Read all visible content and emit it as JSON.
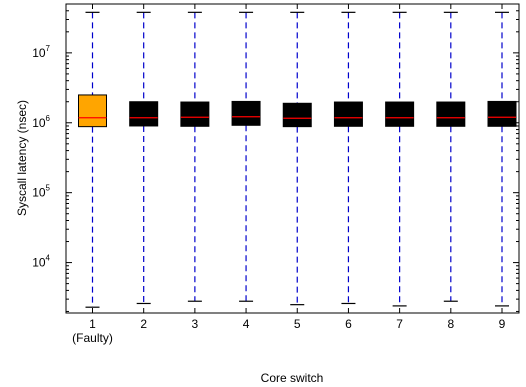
{
  "chart_data": {
    "type": "boxplot",
    "title": "",
    "xlabel": "Core switch",
    "ylabel": "Syscall latency (nsec)",
    "y_scale": "log",
    "ylim": [
      1900,
      50000000
    ],
    "grid": false,
    "legend": "none",
    "y_ticks": [
      {
        "value": 10000,
        "base": "10",
        "exp": "4"
      },
      {
        "value": 100000,
        "base": "10",
        "exp": "5"
      },
      {
        "value": 1000000,
        "base": "10",
        "exp": "6"
      },
      {
        "value": 10000000,
        "base": "10",
        "exp": "7"
      }
    ],
    "categories": [
      "1",
      "2",
      "3",
      "4",
      "5",
      "6",
      "7",
      "8",
      "9"
    ],
    "category_sublabels": [
      "(Faulty)",
      "",
      "",
      "",
      "",
      "",
      "",
      "",
      ""
    ],
    "boxes": [
      {
        "whisker_low": 2300,
        "q1": 880000,
        "median": 1180000,
        "q3": 2500000,
        "whisker_high": 38000000,
        "highlight": true
      },
      {
        "whisker_low": 2600,
        "q1": 900000,
        "median": 1180000,
        "q3": 2000000,
        "whisker_high": 38000000,
        "highlight": false
      },
      {
        "whisker_low": 2800,
        "q1": 890000,
        "median": 1200000,
        "q3": 1980000,
        "whisker_high": 38000000,
        "highlight": false
      },
      {
        "whisker_low": 2800,
        "q1": 920000,
        "median": 1220000,
        "q3": 2020000,
        "whisker_high": 38000000,
        "highlight": false
      },
      {
        "whisker_low": 2500,
        "q1": 880000,
        "median": 1160000,
        "q3": 1900000,
        "whisker_high": 38000000,
        "highlight": false
      },
      {
        "whisker_low": 2600,
        "q1": 890000,
        "median": 1180000,
        "q3": 1980000,
        "whisker_high": 38000000,
        "highlight": false
      },
      {
        "whisker_low": 2400,
        "q1": 890000,
        "median": 1180000,
        "q3": 1980000,
        "whisker_high": 38000000,
        "highlight": false
      },
      {
        "whisker_low": 2800,
        "q1": 890000,
        "median": 1180000,
        "q3": 1980000,
        "whisker_high": 38000000,
        "highlight": false
      },
      {
        "whisker_low": 2400,
        "q1": 890000,
        "median": 1200000,
        "q3": 2020000,
        "whisker_high": 38000000,
        "highlight": false
      }
    ],
    "colors": {
      "box_fill": "#000000",
      "highlight_fill": "#ffa500",
      "median": "#ff0000",
      "whisker": "#0000cc",
      "cap": "#000000",
      "axis": "#000000"
    }
  }
}
